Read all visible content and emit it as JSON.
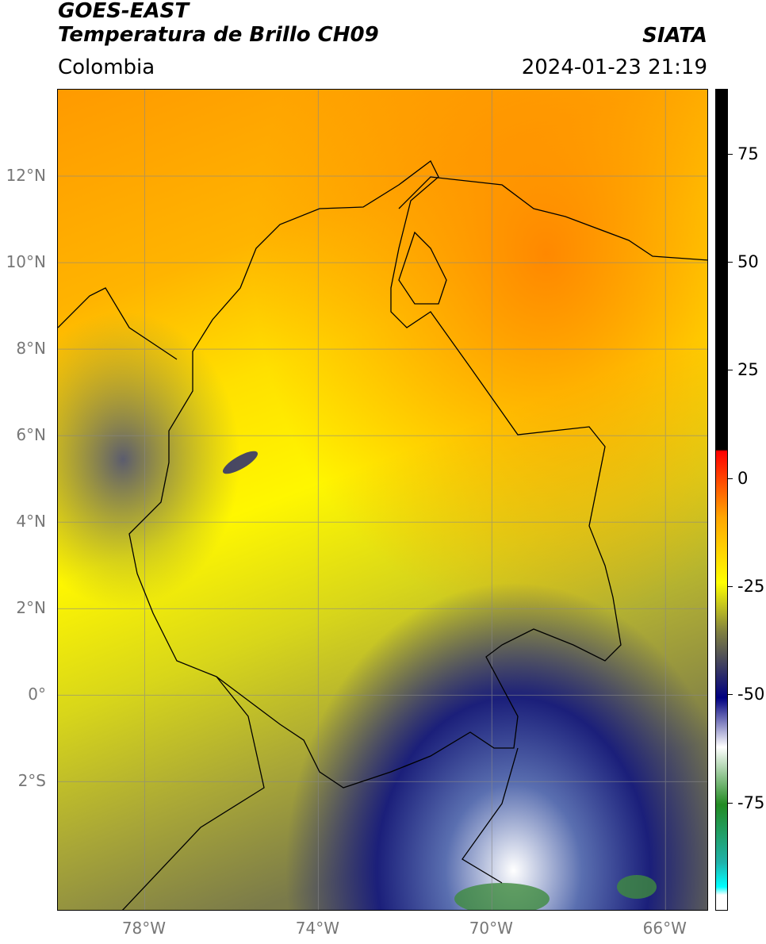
{
  "header": {
    "satellite": "GOES-EAST",
    "product": "Temperatura de Brillo CH09",
    "region": "Colombia",
    "organization": "SIATA",
    "datetime": "2024-01-23 21:19"
  },
  "map": {
    "lat_ticks": [
      "12°N",
      "10°N",
      "8°N",
      "6°N",
      "4°N",
      "2°N",
      "0°",
      "2°S"
    ],
    "lon_ticks": [
      "78°W",
      "74°W",
      "70°W",
      "66°W"
    ],
    "extent": {
      "lon_min": -80.0,
      "lon_max": -65.0,
      "lat_min": -5.0,
      "lat_max": 14.0
    },
    "gridlines": true,
    "colors": {
      "warm": "#ff8c00",
      "mid": "#ffff00",
      "cool": "#b5b52a",
      "cold": "#1a1a80",
      "coldest": "#ffffff",
      "green": "#3e8b3e"
    }
  },
  "colorbar": {
    "labels": [
      "75",
      "50",
      "25",
      "0",
      "-25",
      "-50",
      "-75"
    ],
    "values": [
      75,
      50,
      25,
      0,
      -25,
      -50,
      -75
    ],
    "range": [
      -100,
      90
    ]
  }
}
